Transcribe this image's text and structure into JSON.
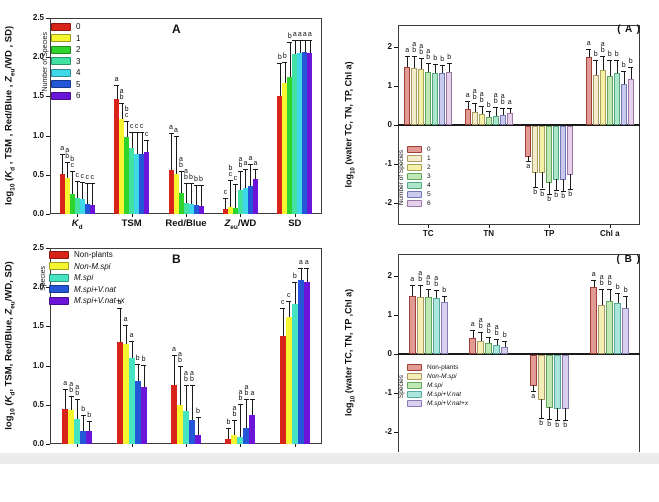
{
  "figure": {
    "background": "#ffffff",
    "footer_strip_color": "#ececec"
  },
  "chart_data": [
    {
      "id": "optical-properties-by-richness",
      "type": "bar",
      "panel_label": "A",
      "ylabel": "log~10~ (*K*~d~ , TSM , Red/Blue , *Z*~eu~/WD , SD)",
      "ylim": [
        0,
        2.5
      ],
      "yticks": [
        "0.0",
        "0.5",
        "1.0",
        "1.5",
        "2.0",
        "2.5"
      ],
      "grid": false,
      "legend_title": "Number of Species",
      "legend_position": "upper-left-inside",
      "series": [
        {
          "name": "0",
          "fill": "#d8231b",
          "border": "#7a120d"
        },
        {
          "name": "1",
          "fill": "#f6f630",
          "border": "#8a8a10"
        },
        {
          "name": "2",
          "fill": "#2ed32b",
          "border": "#157a13"
        },
        {
          "name": "3",
          "fill": "#41e2a2",
          "border": "#1d8a62"
        },
        {
          "name": "4",
          "fill": "#3fd8e8",
          "border": "#1d7e8a"
        },
        {
          "name": "5",
          "fill": "#2457d8",
          "border": "#10307a"
        },
        {
          "name": "6",
          "fill": "#6b15d8",
          "border": "#3d0a7a"
        }
      ],
      "categories": [
        "*K*~d~",
        "TSM",
        "Red/Blue",
        "*Z*~eu~/WD",
        "SD"
      ],
      "groups": [
        {
          "values": [
            0.51,
            0.46,
            0.25,
            0.2,
            0.19,
            0.13,
            0.12
          ],
          "errors": [
            0.25,
            0.2,
            0.3,
            0.22,
            0.22,
            0.27,
            0.28
          ],
          "letters": [
            "a",
            "ab",
            "bc",
            "c",
            "c",
            "c",
            "c"
          ]
        },
        {
          "values": [
            1.47,
            1.21,
            0.98,
            0.84,
            0.77,
            0.77,
            0.79
          ],
          "errors": [
            0.18,
            0.21,
            0.2,
            0.21,
            0.28,
            0.28,
            0.16
          ],
          "letters": [
            "a",
            "ab",
            "bc",
            "c",
            "c",
            "c",
            "c"
          ]
        },
        {
          "values": [
            0.56,
            0.51,
            0.27,
            0.14,
            0.13,
            0.11,
            0.1
          ],
          "errors": [
            0.47,
            0.48,
            0.28,
            0.26,
            0.27,
            0.26,
            0.27
          ],
          "letters": [
            "a",
            "a",
            "ab",
            "ab",
            "b",
            "b",
            "b"
          ]
        },
        {
          "values": [
            0.06,
            0.09,
            0.08,
            0.3,
            0.33,
            0.36,
            0.45
          ],
          "errors": [
            0.15,
            0.35,
            0.3,
            0.25,
            0.25,
            0.28,
            0.12
          ],
          "letters": [
            "c",
            "bc",
            "c",
            "ab",
            "a",
            "a",
            "a"
          ]
        },
        {
          "values": [
            1.51,
            1.67,
            1.75,
            2.04,
            2.05,
            2.07,
            2.05
          ],
          "errors": [
            0.42,
            0.27,
            0.45,
            0.18,
            0.17,
            0.15,
            0.17
          ],
          "letters": [
            "b",
            "b",
            "b",
            "a",
            "a",
            "a",
            "a"
          ]
        }
      ]
    },
    {
      "id": "optical-properties-by-species",
      "type": "bar",
      "panel_label": "B",
      "ylabel": "log~10~ (*K*~d~, TSM, Red/Blue, *Z*~eu~/WD, SD)",
      "ylim": [
        0,
        2.5
      ],
      "yticks": [
        "0.0",
        "0.5",
        "1.0",
        "1.5",
        "2.0",
        "2.5"
      ],
      "grid": false,
      "legend_title": "Species",
      "legend_position": "upper-left-inside",
      "series": [
        {
          "name": "Non-plants",
          "fill": "#d8231b",
          "border": "#7a120d"
        },
        {
          "name": "*Non-M.spi*",
          "fill": "#f6f630",
          "border": "#8a8a10"
        },
        {
          "name": "*M.spi*",
          "fill": "#47e4c4",
          "border": "#1d8a6e"
        },
        {
          "name": "*M.spi+V.nat*",
          "fill": "#2457d8",
          "border": "#10307a"
        },
        {
          "name": "*M.spi+V.nat+x*",
          "fill": "#6b15d8",
          "border": "#3d0a7a"
        }
      ],
      "categories": [
        "*K*~d~",
        "TSM",
        "Red/Blue",
        "*Z*~eu~/WD",
        "SD"
      ],
      "groups": [
        {
          "values": [
            0.45,
            0.43,
            0.32,
            0.17,
            0.16
          ],
          "errors": [
            0.25,
            0.18,
            0.25,
            0.2,
            0.13
          ],
          "letters": [
            "a",
            "ab",
            "ab",
            "b",
            "b"
          ]
        },
        {
          "values": [
            1.3,
            1.27,
            1.1,
            0.8,
            0.73
          ],
          "errors": [
            0.43,
            0.25,
            0.22,
            0.22,
            0.28
          ],
          "letters": [
            "a",
            "a",
            "a",
            "b",
            "b"
          ]
        },
        {
          "values": [
            0.75,
            0.5,
            0.42,
            0.3,
            0.11
          ],
          "errors": [
            0.38,
            0.5,
            0.33,
            0.45,
            0.24
          ],
          "letters": [
            "a",
            "ab",
            "ab",
            "ab",
            "b"
          ]
        },
        {
          "values": [
            0.06,
            0.11,
            0.09,
            0.21,
            0.37
          ],
          "errors": [
            0.14,
            0.2,
            0.42,
            0.37,
            0.2
          ],
          "letters": [
            "b",
            "ab",
            "ab",
            "ab",
            "a"
          ]
        },
        {
          "values": [
            1.38,
            1.62,
            1.78,
            2.09,
            2.07
          ],
          "errors": [
            0.35,
            0.21,
            0.28,
            0.16,
            0.18
          ],
          "letters": [
            "c",
            "c",
            "b",
            "a",
            "a"
          ]
        }
      ]
    },
    {
      "id": "water-chemistry-by-richness",
      "type": "bar",
      "panel_label": "( A )",
      "ylabel": "log~10~ (water TC, TN, TP, Chl a)",
      "ylim": [
        -2.55,
        2.55
      ],
      "yticks": [
        "-2",
        "-1",
        "0",
        "1",
        "2"
      ],
      "grid": false,
      "legend_title": "Number of Species",
      "legend_position": "lower-left-inside",
      "series": [
        {
          "name": "0",
          "fill": "#e29b94",
          "border": "#9e4038"
        },
        {
          "name": "1",
          "fill": "#f4ecca",
          "border": "#a89a62"
        },
        {
          "name": "2",
          "fill": "#f4f0a8",
          "border": "#a8a25a"
        },
        {
          "name": "3",
          "fill": "#bfe8b4",
          "border": "#61a45c"
        },
        {
          "name": "4",
          "fill": "#aae7cb",
          "border": "#56a684"
        },
        {
          "name": "5",
          "fill": "#c8cbee",
          "border": "#7379b2"
        },
        {
          "name": "6",
          "fill": "#e7d0e9",
          "border": "#9c76a4"
        }
      ],
      "categories": [
        "TC",
        "TN",
        "TP",
        "Chl a"
      ],
      "groups": [
        {
          "values": [
            1.48,
            1.45,
            1.42,
            1.36,
            1.33,
            1.33,
            1.36
          ],
          "errors": [
            0.28,
            0.3,
            0.28,
            0.22,
            0.22,
            0.2,
            0.22
          ],
          "letters": [
            "a",
            "ab",
            "ab",
            "ab",
            "b",
            "b",
            "b"
          ]
        },
        {
          "values": [
            0.42,
            0.33,
            0.28,
            0.2,
            0.23,
            0.26,
            0.3
          ],
          "errors": [
            0.2,
            0.22,
            0.2,
            0.16,
            0.22,
            0.18,
            0.14
          ],
          "letters": [
            "a",
            "ab",
            "ab",
            "b",
            "ab",
            "ab",
            "a"
          ]
        },
        {
          "values": [
            -0.8,
            -1.2,
            -1.2,
            -1.45,
            -1.38,
            -1.38,
            -1.25
          ],
          "errors": [
            0.12,
            0.38,
            0.42,
            0.3,
            0.28,
            0.3,
            0.38
          ],
          "letters": [
            "a",
            "b",
            "b",
            "b",
            "b",
            "b",
            "b"
          ]
        },
        {
          "values": [
            1.73,
            1.28,
            1.4,
            1.25,
            1.32,
            1.05,
            1.17
          ],
          "errors": [
            0.2,
            0.38,
            0.35,
            0.42,
            0.35,
            0.32,
            0.3
          ],
          "letters": [
            "a",
            "b",
            "ab",
            "b",
            "b",
            "b",
            "b"
          ]
        }
      ]
    },
    {
      "id": "water-chemistry-by-species",
      "type": "bar",
      "panel_label": "( B )",
      "ylabel": "log~10~ (water TC, TN, TP ,Chl a)",
      "ylim": [
        -2.55,
        2.55
      ],
      "yticks": [
        "-2",
        "-1",
        "0",
        "1",
        "2"
      ],
      "grid": false,
      "legend_title": "Species",
      "legend_position": "lower-left-inside",
      "series": [
        {
          "name": "Non-plants",
          "fill": "#e29b94",
          "border": "#9e4038"
        },
        {
          "name": "*Non-M.spi*",
          "fill": "#f4edb6",
          "border": "#a89a62"
        },
        {
          "name": "*M.spi*",
          "fill": "#bfe8b4",
          "border": "#61a45c"
        },
        {
          "name": "*M.spi+V.nat*",
          "fill": "#abe6dd",
          "border": "#58a89e"
        },
        {
          "name": "*M.spi+V.nat+x*",
          "fill": "#d9cfee",
          "border": "#8a7ab2"
        }
      ],
      "categories": [
        "TC",
        "TN",
        "TP",
        "Chl a"
      ],
      "groups": [
        {
          "values": [
            1.48,
            1.46,
            1.45,
            1.43,
            1.33
          ],
          "errors": [
            0.28,
            0.3,
            0.22,
            0.2,
            0.16
          ],
          "letters": [
            "a",
            "ab",
            "ab",
            "ab",
            "b"
          ]
        },
        {
          "values": [
            0.4,
            0.33,
            0.28,
            0.23,
            0.18
          ],
          "errors": [
            0.22,
            0.24,
            0.16,
            0.16,
            0.16
          ],
          "letters": [
            "a",
            "ab",
            "ab",
            "ab",
            "b"
          ]
        },
        {
          "values": [
            -0.8,
            -1.15,
            -1.35,
            -1.38,
            -1.38
          ],
          "errors": [
            0.14,
            0.48,
            0.3,
            0.3,
            0.3
          ],
          "letters": [
            "a",
            "b",
            "b",
            "b",
            "b"
          ]
        },
        {
          "values": [
            1.7,
            1.25,
            1.35,
            1.3,
            1.17
          ],
          "errors": [
            0.2,
            0.42,
            0.3,
            0.26,
            0.32
          ],
          "letters": [
            "a",
            "ab",
            "ab",
            "b",
            "b"
          ]
        }
      ]
    }
  ]
}
